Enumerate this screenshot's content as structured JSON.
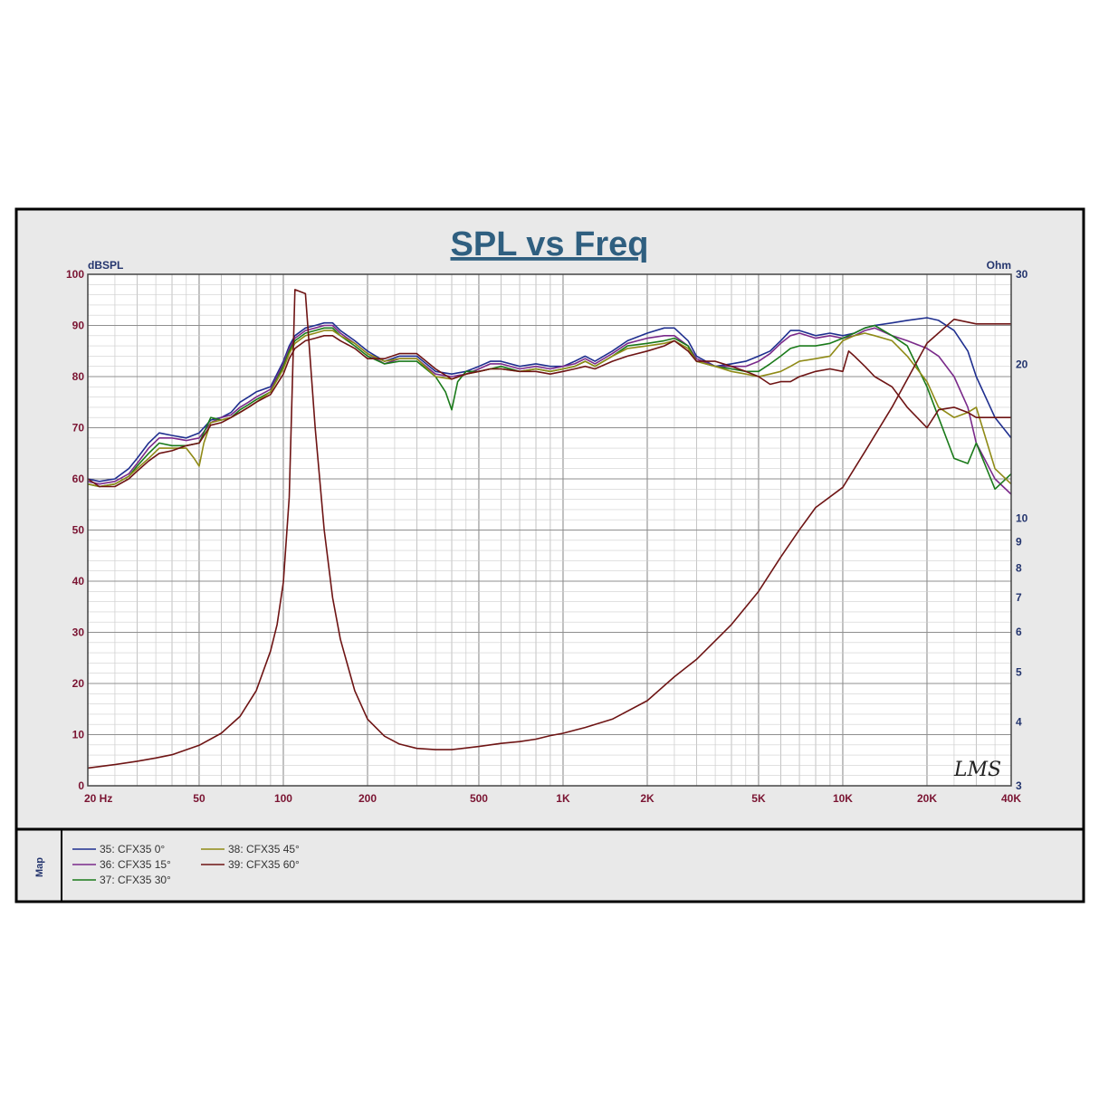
{
  "chart_data": {
    "type": "line",
    "title": "SPL vs Freq",
    "left_axis_unit": "dBSPL",
    "right_axis_unit": "Ohm",
    "x_scale": "log",
    "xlim": [
      20,
      40000
    ],
    "ylim": [
      0,
      100
    ],
    "y2lim": [
      3,
      30
    ],
    "y2_scale": "log",
    "grid": true,
    "x_tick_labels": [
      {
        "value": 20,
        "label": "20  Hz"
      },
      {
        "value": 50,
        "label": "50"
      },
      {
        "value": 100,
        "label": "100"
      },
      {
        "value": 200,
        "label": "200"
      },
      {
        "value": 500,
        "label": "500"
      },
      {
        "value": 1000,
        "label": "1K"
      },
      {
        "value": 2000,
        "label": "2K"
      },
      {
        "value": 5000,
        "label": "5K"
      },
      {
        "value": 10000,
        "label": "10K"
      },
      {
        "value": 20000,
        "label": "20K"
      },
      {
        "value": 40000,
        "label": "40K"
      }
    ],
    "y_tick_labels": [
      "0",
      "10",
      "20",
      "30",
      "40",
      "50",
      "60",
      "70",
      "80",
      "90",
      "100"
    ],
    "y2_tick_labels": [
      {
        "value": 3,
        "label": "3"
      },
      {
        "value": 4,
        "label": "4"
      },
      {
        "value": 5,
        "label": "5"
      },
      {
        "value": 6,
        "label": "6"
      },
      {
        "value": 7,
        "label": "7"
      },
      {
        "value": 8,
        "label": "8"
      },
      {
        "value": 9,
        "label": "9"
      },
      {
        "value": 10,
        "label": "10"
      },
      {
        "value": 20,
        "label": "20"
      },
      {
        "value": 30,
        "label": "30"
      }
    ],
    "series": [
      {
        "name": "35: CFX35  0°",
        "color": "#1f2f8f",
        "axis": "left",
        "x": [
          20,
          22,
          25,
          28,
          30,
          33,
          36,
          40,
          45,
          50,
          55,
          60,
          65,
          70,
          75,
          80,
          90,
          100,
          105,
          110,
          120,
          130,
          140,
          150,
          160,
          180,
          200,
          230,
          260,
          300,
          350,
          400,
          450,
          500,
          550,
          600,
          700,
          800,
          900,
          1000,
          1100,
          1200,
          1300,
          1500,
          1700,
          2000,
          2300,
          2500,
          2800,
          3000,
          3500,
          4000,
          4500,
          5000,
          5500,
          6000,
          6500,
          7000,
          8000,
          9000,
          10000,
          11000,
          12000,
          13000,
          15000,
          17000,
          20000,
          22000,
          25000,
          28000,
          30000,
          35000,
          40000
        ],
        "y": [
          60,
          59.5,
          60,
          62,
          64,
          67,
          69,
          68.5,
          68,
          69,
          71.5,
          72,
          73,
          75,
          76,
          77,
          78,
          83,
          86,
          88,
          89.5,
          90,
          90.5,
          90.5,
          89,
          87,
          85,
          83,
          84,
          84,
          81,
          80.5,
          81,
          82,
          83,
          83,
          82,
          82.5,
          82,
          82,
          83,
          84,
          83,
          85,
          87,
          88.5,
          89.5,
          89.5,
          87,
          84,
          82,
          82.5,
          83,
          84,
          85,
          87,
          89,
          89,
          88,
          88.5,
          88,
          88.5,
          89.5,
          90,
          90.5,
          91,
          91.5,
          91,
          89,
          85,
          80,
          72,
          68
        ]
      },
      {
        "name": "36: CFX35  15°",
        "color": "#7a2a8a",
        "axis": "left",
        "x": [
          20,
          22,
          25,
          28,
          30,
          33,
          36,
          40,
          45,
          50,
          55,
          60,
          65,
          70,
          75,
          80,
          90,
          100,
          105,
          110,
          120,
          130,
          140,
          150,
          160,
          180,
          200,
          230,
          260,
          300,
          350,
          400,
          450,
          500,
          550,
          600,
          700,
          800,
          900,
          1000,
          1100,
          1200,
          1300,
          1500,
          1700,
          2000,
          2300,
          2500,
          2800,
          3000,
          3500,
          4000,
          4500,
          5000,
          5500,
          6000,
          6500,
          7000,
          8000,
          9000,
          10000,
          11000,
          12000,
          13000,
          15000,
          17000,
          20000,
          22000,
          25000,
          28000,
          30000,
          35000,
          40000
        ],
        "y": [
          59.5,
          59,
          59.5,
          61,
          63,
          66,
          68,
          68,
          67.5,
          68,
          71,
          72,
          72.5,
          74,
          75,
          76,
          77.5,
          82.5,
          85.5,
          87.5,
          89,
          89.5,
          90,
          90,
          88.5,
          86.5,
          84.5,
          82.5,
          83.5,
          83.5,
          80.5,
          80,
          80.5,
          81.5,
          82.5,
          82.5,
          81.5,
          82,
          81.5,
          82,
          82.5,
          83.5,
          82.5,
          84.5,
          86.5,
          87.5,
          88,
          88,
          86,
          83.5,
          82,
          82,
          82,
          83,
          84.5,
          86.5,
          88,
          88.5,
          87.5,
          88,
          87.5,
          88,
          89,
          89.5,
          88,
          87,
          85.5,
          84,
          80,
          74,
          67,
          60,
          57
        ]
      },
      {
        "name": "37: CFX35  30°",
        "color": "#1a7a1a",
        "axis": "left",
        "x": [
          20,
          22,
          25,
          28,
          30,
          33,
          36,
          40,
          45,
          50,
          55,
          60,
          65,
          70,
          75,
          80,
          90,
          100,
          105,
          110,
          120,
          130,
          140,
          150,
          160,
          180,
          200,
          230,
          260,
          300,
          350,
          380,
          400,
          420,
          450,
          500,
          550,
          600,
          700,
          800,
          900,
          1000,
          1100,
          1200,
          1300,
          1500,
          1700,
          2000,
          2300,
          2500,
          2800,
          3000,
          3500,
          4000,
          4500,
          5000,
          5500,
          6000,
          6500,
          7000,
          8000,
          9000,
          10000,
          11000,
          12000,
          13000,
          15000,
          17000,
          20000,
          22000,
          25000,
          28000,
          30000,
          35000,
          40000
        ],
        "y": [
          59,
          58.5,
          59,
          60.5,
          62.5,
          65,
          67,
          66.5,
          66.5,
          67,
          72,
          71.5,
          72,
          73.5,
          74.5,
          75.5,
          77,
          82,
          85,
          87,
          88.5,
          89,
          89.5,
          89.5,
          88,
          86,
          84,
          82.5,
          83,
          83,
          80,
          77,
          73.5,
          79,
          81,
          81,
          81.5,
          82,
          81,
          81.5,
          81,
          81.5,
          82,
          83,
          82,
          84,
          86,
          86.5,
          87,
          87.5,
          86,
          83,
          82,
          81.5,
          81,
          81,
          82.5,
          84,
          85.5,
          86,
          86,
          86.5,
          87.5,
          88.5,
          89.5,
          90,
          88,
          86,
          78,
          72,
          64,
          63,
          67,
          58,
          61
        ]
      },
      {
        "name": "38: CFX35  45°",
        "color": "#8f8a16",
        "axis": "left",
        "x": [
          20,
          22,
          25,
          28,
          30,
          33,
          36,
          40,
          45,
          48,
          50,
          52,
          55,
          60,
          65,
          70,
          75,
          80,
          90,
          100,
          105,
          110,
          120,
          130,
          140,
          150,
          160,
          180,
          200,
          230,
          260,
          300,
          350,
          400,
          450,
          500,
          550,
          600,
          700,
          800,
          900,
          1000,
          1100,
          1200,
          1300,
          1500,
          1700,
          2000,
          2300,
          2500,
          2800,
          3000,
          3500,
          4000,
          4500,
          5000,
          5500,
          6000,
          6500,
          7000,
          8000,
          9000,
          10000,
          11000,
          12000,
          13000,
          15000,
          17000,
          20000,
          22000,
          25000,
          28000,
          30000,
          35000,
          40000
        ],
        "y": [
          59,
          58.5,
          59,
          60.5,
          62,
          64,
          66,
          66,
          66,
          64,
          62.5,
          67,
          71,
          71.5,
          72,
          73,
          74,
          75,
          77,
          81.5,
          84.5,
          86.5,
          88,
          88.5,
          89,
          89,
          88,
          86.5,
          84.5,
          83,
          83.5,
          83.5,
          80,
          79.5,
          80.5,
          81,
          81.5,
          81.5,
          81,
          81.5,
          81,
          81.5,
          82,
          83,
          82,
          84,
          85.5,
          86,
          86.5,
          87,
          85.5,
          83,
          82,
          81,
          80.5,
          80,
          80.5,
          81,
          82,
          83,
          83.5,
          84,
          87,
          88,
          88.5,
          88,
          87,
          84,
          79,
          74,
          72,
          73,
          74,
          62,
          59
        ]
      },
      {
        "name": "39: CFX35  60°",
        "color": "#6e1414",
        "axis": "left",
        "x": [
          20,
          22,
          25,
          28,
          30,
          33,
          36,
          40,
          45,
          50,
          55,
          60,
          65,
          70,
          75,
          80,
          90,
          100,
          105,
          110,
          120,
          130,
          140,
          150,
          160,
          180,
          200,
          230,
          260,
          300,
          350,
          400,
          450,
          500,
          550,
          600,
          700,
          800,
          900,
          1000,
          1100,
          1200,
          1300,
          1500,
          1700,
          2000,
          2300,
          2500,
          2800,
          3000,
          3500,
          4000,
          4500,
          5000,
          5500,
          6000,
          6500,
          7000,
          8000,
          9000,
          10000,
          10500,
          11000,
          12000,
          13000,
          15000,
          17000,
          20000,
          22000,
          25000,
          28000,
          30000,
          35000,
          40000
        ],
        "y": [
          60,
          58.5,
          58.5,
          60,
          61.5,
          63.5,
          65,
          65.5,
          66.5,
          67,
          70.5,
          71,
          72,
          73,
          74,
          75,
          76.5,
          80.5,
          83.5,
          85.5,
          87,
          87.5,
          88,
          88,
          87,
          85.5,
          83.5,
          83.5,
          84.5,
          84.5,
          81.5,
          79.5,
          80.5,
          81,
          81.5,
          81.5,
          81,
          81,
          80.5,
          81,
          81.5,
          82,
          81.5,
          83,
          84,
          85,
          86,
          87,
          85,
          83,
          83,
          82,
          81,
          80,
          78.5,
          79,
          79,
          80,
          81,
          81.5,
          81,
          85,
          84,
          82,
          80,
          78,
          74,
          70,
          73.5,
          74,
          73,
          72,
          72,
          72
        ]
      },
      {
        "name": "impedance",
        "color": "#6e1414",
        "axis": "right",
        "x": [
          20,
          25,
          30,
          35,
          40,
          50,
          60,
          70,
          80,
          90,
          95,
          100,
          105,
          110,
          120,
          130,
          140,
          150,
          160,
          180,
          200,
          230,
          260,
          300,
          350,
          400,
          500,
          600,
          700,
          800,
          900,
          1000,
          1200,
          1500,
          2000,
          2500,
          3000,
          4000,
          5000,
          6000,
          7000,
          8000,
          10000,
          12000,
          15000,
          20000,
          25000,
          30000,
          40000
        ],
        "y": [
          3.25,
          3.3,
          3.35,
          3.4,
          3.45,
          3.6,
          3.8,
          4.1,
          4.6,
          5.5,
          6.2,
          7.5,
          11,
          28,
          27.5,
          15,
          9.5,
          7,
          5.8,
          4.6,
          4.05,
          3.75,
          3.62,
          3.55,
          3.53,
          3.53,
          3.58,
          3.63,
          3.66,
          3.7,
          3.76,
          3.8,
          3.9,
          4.05,
          4.4,
          4.9,
          5.3,
          6.2,
          7.2,
          8.4,
          9.5,
          10.5,
          11.5,
          13.5,
          16.5,
          22,
          24.5,
          24,
          24
        ]
      }
    ]
  },
  "legend": {
    "label": "Map",
    "items": [
      {
        "name": "35: CFX35  0°",
        "color": "#1f2f8f"
      },
      {
        "name": "36: CFX35  15°",
        "color": "#7a2a8a"
      },
      {
        "name": "37: CFX35  30°",
        "color": "#1a7a1a"
      },
      {
        "name": "38: CFX35  45°",
        "color": "#8f8a16"
      },
      {
        "name": "39: CFX35  60°",
        "color": "#6e1414"
      }
    ]
  },
  "watermark_text": "LMS",
  "colors": {
    "background": "#e9e9e9",
    "grid": "#a9a9a9",
    "left_axis_text": "#7a1432",
    "x_axis_text": "#7a1432",
    "right_axis_text": "#24356e",
    "title": "#2f5f80"
  }
}
